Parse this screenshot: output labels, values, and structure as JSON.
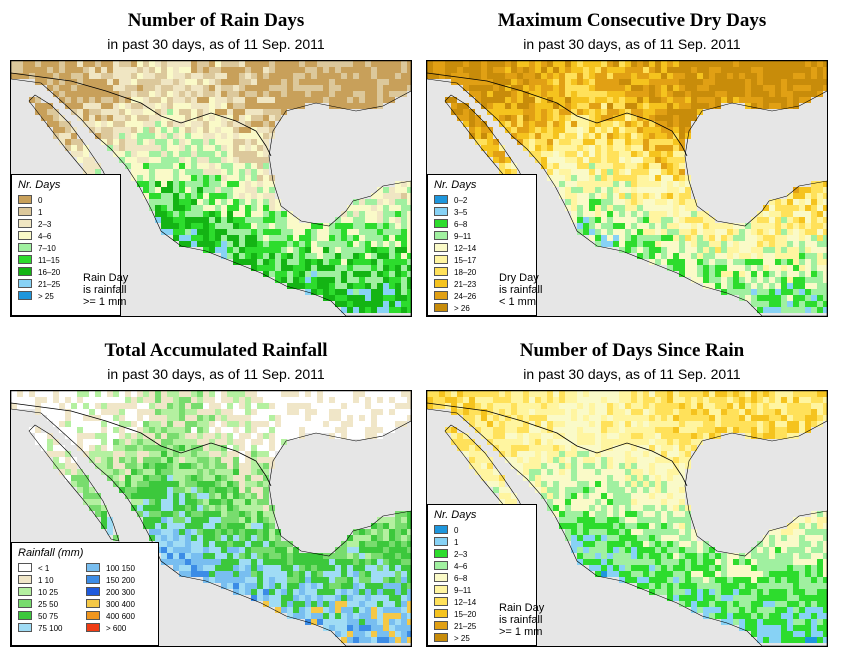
{
  "panels": [
    {
      "title": "Number of Rain Days",
      "subtitle": "in past 30 days, as of  11 Sep. 2011",
      "legend_title": "Nr. Days",
      "note": [
        "Rain Day",
        "is rainfall",
        ">= 1 mm"
      ],
      "legend": [
        {
          "label": "0",
          "color": "#c8a05a"
        },
        {
          "label": "1",
          "color": "#dcc89b"
        },
        {
          "label": "2–3",
          "color": "#f0e6c3"
        },
        {
          "label": "4–6",
          "color": "#fafac8"
        },
        {
          "label": "7–10",
          "color": "#a0f0a0"
        },
        {
          "label": "11–15",
          "color": "#2ddc2d"
        },
        {
          "label": "16–20",
          "color": "#14b414"
        },
        {
          "label": "21–25",
          "color": "#87d2f5"
        },
        {
          "label": "> 25",
          "color": "#1e96dc"
        }
      ]
    },
    {
      "title": "Maximum Consecutive Dry Days",
      "subtitle": "in past 30 days, as of  11 Sep. 2011",
      "legend_title": "Nr. Days",
      "note": [
        "Dry Day",
        "is rainfall",
        "< 1 mm"
      ],
      "legend": [
        {
          "label": "0–2",
          "color": "#1e96dc"
        },
        {
          "label": "3–5",
          "color": "#87d2f5"
        },
        {
          "label": "6–8",
          "color": "#2ddc2d"
        },
        {
          "label": "9–11",
          "color": "#a0f0a0"
        },
        {
          "label": "12–14",
          "color": "#fafac8"
        },
        {
          "label": "15–17",
          "color": "#fff5a0"
        },
        {
          "label": "18–20",
          "color": "#ffe15a"
        },
        {
          "label": "21–23",
          "color": "#f5c31e"
        },
        {
          "label": "24–26",
          "color": "#e1a014"
        },
        {
          "label": "> 26",
          "color": "#c88c0a"
        }
      ]
    },
    {
      "title": "Total Accumulated Rainfall",
      "subtitle": "in past 30 days, as of  11 Sep. 2011",
      "legend_title": "Rainfall (mm)",
      "note": [],
      "legend": [
        {
          "label": "< 1",
          "color": "#ffffff"
        },
        {
          "label": "1    10",
          "color": "#f0e6c8"
        },
        {
          "label": "10    25",
          "color": "#b4f0a0"
        },
        {
          "label": "25    50",
          "color": "#78dc6e"
        },
        {
          "label": "50    75",
          "color": "#3cc83c"
        },
        {
          "label": "75    100",
          "color": "#a0dcf5"
        },
        {
          "label": "100    150",
          "color": "#78bef0"
        },
        {
          "label": "150    200",
          "color": "#3c8ce6"
        },
        {
          "label": "200    300",
          "color": "#1e5adc"
        },
        {
          "label": "300    400",
          "color": "#f5c846"
        },
        {
          "label": "400    600",
          "color": "#f0961e"
        },
        {
          "label": "> 600",
          "color": "#f03c14"
        }
      ]
    },
    {
      "title": "Number of Days Since Rain",
      "subtitle": "in past 30 days, as of  11 Sep. 2011",
      "legend_title": "Nr. Days",
      "note": [
        "Rain Day",
        "is rainfall",
        ">= 1 mm"
      ],
      "legend": [
        {
          "label": "0",
          "color": "#1e96dc"
        },
        {
          "label": "1",
          "color": "#87d2f5"
        },
        {
          "label": "2–3",
          "color": "#2ddc2d"
        },
        {
          "label": "4–6",
          "color": "#a0f0a0"
        },
        {
          "label": "6–8",
          "color": "#fafac8"
        },
        {
          "label": "9–11",
          "color": "#fff5a0"
        },
        {
          "label": "12–14",
          "color": "#ffe15a"
        },
        {
          "label": "15–20",
          "color": "#f5c31e"
        },
        {
          "label": "21–25",
          "color": "#e1a014"
        },
        {
          "label": "> 25",
          "color": "#c88c0a"
        }
      ]
    }
  ]
}
